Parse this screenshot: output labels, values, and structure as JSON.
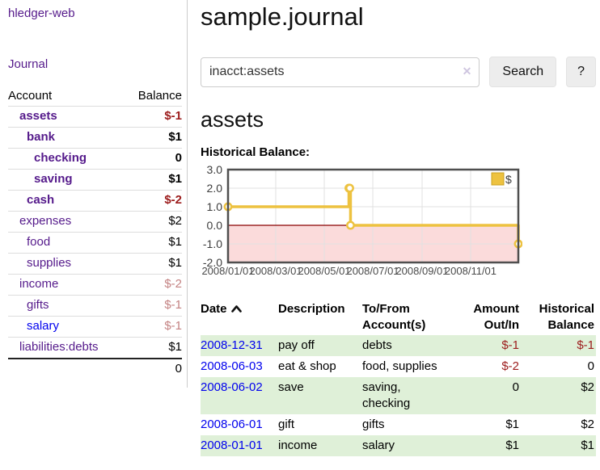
{
  "app": {
    "brand": "hledger-web"
  },
  "palette": {
    "link_purple": "#551a8b",
    "link_blue": "#0000ee",
    "negative_strong": "#9c1c1c",
    "negative_faded": "#c48383",
    "row_green": "#dff0d8",
    "chart_gold": "#edc240",
    "chart_negative_bg": "#fbdbdb",
    "chart_zero_line": "#8b0000"
  },
  "sidebar": {
    "journal_link": "Journal",
    "table": {
      "headers": {
        "account": "Account",
        "balance": "Balance"
      },
      "rows": [
        {
          "account": "assets",
          "balance": "$-1",
          "level": 1,
          "emph": true,
          "neg": "strong"
        },
        {
          "account": "bank",
          "balance": "$1",
          "level": 2,
          "emph": true,
          "neg": null
        },
        {
          "account": "checking",
          "balance": "0",
          "level": 3,
          "emph": true,
          "neg": null
        },
        {
          "account": "saving",
          "balance": "$1",
          "level": 3,
          "emph": true,
          "neg": null
        },
        {
          "account": "cash",
          "balance": "$-2",
          "level": 2,
          "emph": true,
          "neg": "strong"
        },
        {
          "account": "expenses",
          "balance": "$2",
          "level": 1,
          "emph": false,
          "neg": null
        },
        {
          "account": "food",
          "balance": "$1",
          "level": 2,
          "emph": false,
          "neg": null
        },
        {
          "account": "supplies",
          "balance": "$1",
          "level": 2,
          "emph": false,
          "neg": null
        },
        {
          "account": "income",
          "balance": "$-2",
          "level": 1,
          "emph": false,
          "neg": "faded"
        },
        {
          "account": "gifts",
          "balance": "$-1",
          "level": 2,
          "emph": false,
          "neg": "faded"
        },
        {
          "account": "salary",
          "balance": "$-1",
          "level": 2,
          "emph": false,
          "neg": "faded",
          "blue": true
        },
        {
          "account": "liabilities:debts",
          "balance": "$1",
          "level": 1,
          "emph": false,
          "neg": null
        }
      ],
      "total": "0"
    }
  },
  "header": {
    "title": "sample.journal"
  },
  "search": {
    "value": "inacct:assets",
    "clear_icon": "✕",
    "button_label": "Search",
    "help_label": "?"
  },
  "account_page": {
    "title": "assets"
  },
  "chart_data": {
    "type": "line",
    "step": true,
    "title": "Historical Balance:",
    "series": [
      {
        "name": "$",
        "color": "#edc240",
        "points": [
          [
            "2008-01-01",
            1
          ],
          [
            "2008-06-01",
            2
          ],
          [
            "2008-06-02",
            2
          ],
          [
            "2008-06-03",
            0
          ],
          [
            "2008-12-31",
            -1
          ]
        ]
      }
    ],
    "x_range": [
      "2008-01-01",
      "2008-12-31"
    ],
    "x_ticks": [
      {
        "date": "2008-01-01",
        "label": "2008/01/01"
      },
      {
        "date": "2008-03-01",
        "label": "2008/03/01"
      },
      {
        "date": "2008-05-01",
        "label": "2008/05/01"
      },
      {
        "date": "2008-07-01",
        "label": "2008/07/01"
      },
      {
        "date": "2008-09-01",
        "label": "2008/09/01"
      },
      {
        "date": "2008-11-01",
        "label": "2008/11/01"
      }
    ],
    "y_ticks": [
      "3.0",
      "2.0",
      "1.0",
      "0.0",
      "-1.0",
      "-2.0"
    ],
    "ylim": [
      -2,
      3
    ],
    "grid": true,
    "negative_region_color": "#fbdbdb",
    "zero_line_color": "#8b0000",
    "legend": {
      "label": "$",
      "position": "top-right"
    }
  },
  "register": {
    "columns": [
      {
        "label": "Date",
        "sorted": "asc"
      },
      {
        "label": "Description"
      },
      {
        "label": "To/From Account(s)"
      },
      {
        "label": "Amount Out/In"
      },
      {
        "label": "Historical Balance"
      }
    ],
    "rows": [
      {
        "date": "2008-12-31",
        "description": "pay off",
        "accounts": "debts",
        "amount": "$-1",
        "balance": "$-1",
        "amount_neg": true,
        "balance_neg": true,
        "shaded": true
      },
      {
        "date": "2008-06-03",
        "description": "eat & shop",
        "accounts": "food, supplies",
        "amount": "$-2",
        "balance": "0",
        "amount_neg": true,
        "balance_neg": false,
        "shaded": false
      },
      {
        "date": "2008-06-02",
        "description": "save",
        "accounts": "saving, checking",
        "amount": "0",
        "balance": "$2",
        "amount_neg": false,
        "balance_neg": false,
        "shaded": true
      },
      {
        "date": "2008-06-01",
        "description": "gift",
        "accounts": "gifts",
        "amount": "$1",
        "balance": "$2",
        "amount_neg": false,
        "balance_neg": false,
        "shaded": false
      },
      {
        "date": "2008-01-01",
        "description": "income",
        "accounts": "salary",
        "amount": "$1",
        "balance": "$1",
        "amount_neg": false,
        "balance_neg": false,
        "shaded": true
      }
    ]
  }
}
